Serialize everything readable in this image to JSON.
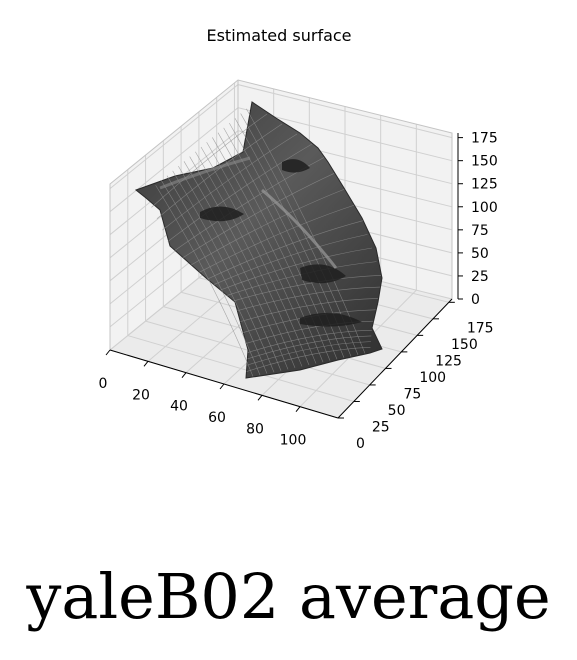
{
  "chart_data": {
    "type": "surface",
    "title": "Estimated surface",
    "subject": "yaleB02 average",
    "x_ticks": [
      "0",
      "20",
      "40",
      "60",
      "80",
      "100"
    ],
    "y_ticks": [
      "0",
      "25",
      "50",
      "75",
      "100",
      "125",
      "150",
      "175"
    ],
    "z_ticks": [
      "0",
      "25",
      "50",
      "75",
      "100",
      "125",
      "150",
      "175"
    ],
    "xlim": [
      0,
      120
    ],
    "ylim": [
      0,
      180
    ],
    "zlim": [
      0,
      180
    ],
    "grid": true,
    "surface_color": "#5a5a5a",
    "mesh_color": "#8e8e8e",
    "pane_color": "#f2f2f2"
  },
  "caption": "yaleB02 average"
}
